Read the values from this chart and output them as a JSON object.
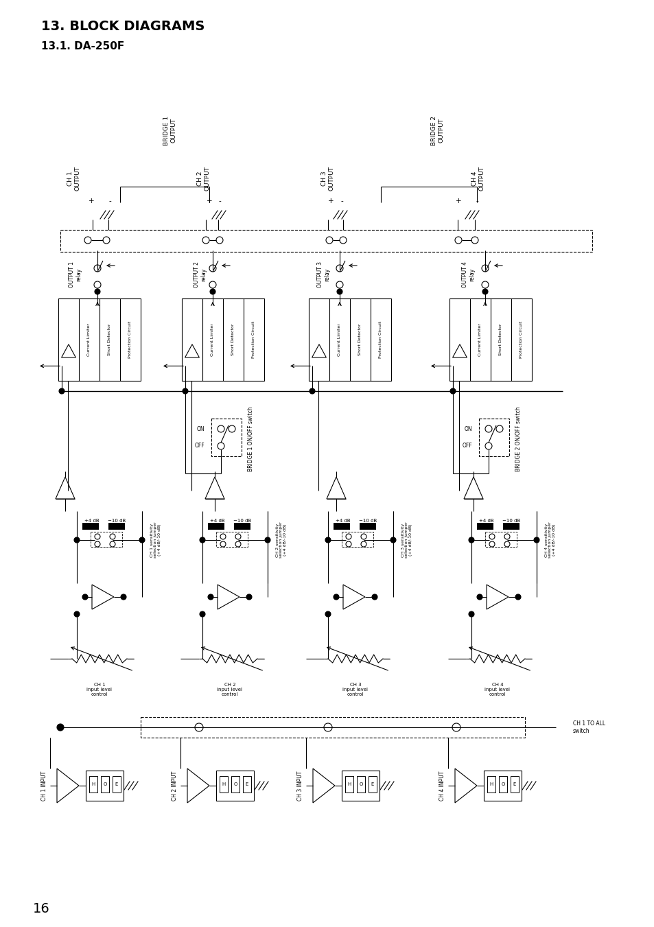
{
  "title": "13. BLOCK DIAGRAMS",
  "subtitle": "13.1. DA-250F",
  "page_number": "16",
  "bg_color": "#ffffff",
  "fg_color": "#000000",
  "title_fontsize": 14,
  "subtitle_fontsize": 11,
  "page_fontsize": 14,
  "ch_labels": [
    "CH 1\nOUTPUT",
    "CH 2\nOUTPUT",
    "CH 3\nOUTPUT",
    "CH 4\nOUTPUT"
  ],
  "bridge_labels": [
    "BRIDGE 1\nOUTPUT",
    "BRIDGE 2\nOUTPUT"
  ],
  "output_relay_labels": [
    "OUTPUT 1\nrelay",
    "OUTPUT 2\nrelay",
    "OUTPUT 3\nrelay",
    "OUTPUT 4\nrelay"
  ],
  "prot_labels": [
    "Current Limiter",
    "Short Detector",
    "Protection Circuit"
  ],
  "sensitivity_labels": [
    "+4 dB",
    "-10 dB"
  ],
  "input_labels": [
    "CH 1 INPUT",
    "CH 2 INPUT",
    "CH 3 INPUT",
    "CH 4 INPUT"
  ],
  "input_level_labels": [
    "CH 1\ninput level\ncontrol",
    "CH 2\ninput level\ncontrol",
    "CH 3\ninput level\ncontrol",
    "CH 4\ninput level\ncontrol"
  ],
  "sensitivity_jumper_labels": [
    "CH 1 sensitivity\nselection jumper\n(+4 dB/-10 dB)",
    "CH 2 sensitivity\nselection jumper\n(+4 dB/-10 dB)",
    "CH 3 sensitivity\nselection jumper\n(+4 dB/-10 dB)",
    "CH 4 sensitivity\nselection jumper\n(+4 dB/-10 dB)"
  ],
  "bridge_switch_labels": [
    "BRIDGE 1 ON/OFF switch",
    "BRIDGE 2 ON/OFF switch"
  ],
  "ch1_to_all_label": "CH 1 TO ALL\nswitch"
}
